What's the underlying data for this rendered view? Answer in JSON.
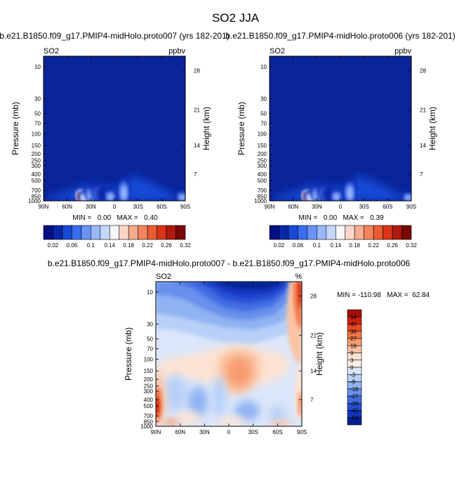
{
  "figure": {
    "title": "SO2 JJA"
  },
  "chart_data": [
    {
      "type": "heatmap",
      "title": "b.e21.B1850.f09_g17.PMIP4-midHolo.proto007 (yrs 182-201)",
      "left_label": "SO2",
      "units": "ppbv",
      "ylabel": "Pressure (mb)",
      "ylabel_right": "Height (km)",
      "x_ticks": [
        "90N",
        "60N",
        "30N",
        "0",
        "30S",
        "60S",
        "90S"
      ],
      "y_ticks": [
        "10",
        "30",
        "50",
        "70",
        "100",
        "150",
        "200",
        "250",
        "300",
        "400",
        "500",
        "700",
        "850",
        "1000"
      ],
      "y_ticks_right": [
        "28",
        "21",
        "14",
        "7"
      ],
      "min": "0.00",
      "max": "0.40",
      "stats": "MIN =   0.00   MAX =   0.40",
      "colorbar_labels": [
        "0.02",
        "0.06",
        "0.1",
        "0.14",
        "0.18",
        "0.22",
        "0.26",
        "0.32"
      ],
      "colors": [
        "#040f82",
        "#0a27a8",
        "#1848d6",
        "#3c6df0",
        "#6a93f7",
        "#9ab8fa",
        "#c5d8fb",
        "#f7f7f7",
        "#fbd5c8",
        "#f7ac90",
        "#f2845d",
        "#ea5a33",
        "#d9341a",
        "#b01a0e",
        "#7a0806"
      ],
      "background": "#0a2499",
      "plumes": [
        {
          "lat": 42,
          "pmin": 640,
          "level": 0.3
        },
        {
          "lat": 38,
          "pmin": 700,
          "level": 0.18
        },
        {
          "lat": 30,
          "pmin": 560,
          "level": 0.12
        },
        {
          "lat": 22,
          "pmin": 520,
          "level": 0.1
        },
        {
          "lat": 15,
          "pmin": 620,
          "level": 0.06
        },
        {
          "lat": 5,
          "pmin": 660,
          "level": 0.12
        },
        {
          "lat": -12,
          "pmin": 430,
          "level": 0.14
        },
        {
          "lat": -86,
          "pmin": 700,
          "level": 0.14
        }
      ]
    },
    {
      "type": "heatmap",
      "title": "b.e21.B1850.f09_g17.PMIP4-midHolo.proto006 (yrs 182-201)",
      "left_label": "SO2",
      "units": "ppbv",
      "ylabel": "Pressure (mb)",
      "ylabel_right": "Height (km)",
      "x_ticks": [
        "90N",
        "60N",
        "30N",
        "0",
        "30S",
        "60S",
        "90S"
      ],
      "y_ticks": [
        "10",
        "30",
        "50",
        "70",
        "100",
        "150",
        "200",
        "250",
        "300",
        "400",
        "500",
        "700",
        "850",
        "1000"
      ],
      "y_ticks_right": [
        "28",
        "21",
        "14",
        "7"
      ],
      "min": "0.00",
      "max": "0.39",
      "stats": "MIN =   0.00   MAX =   0.39",
      "colorbar_labels": [
        "0.02",
        "0.06",
        "0.1",
        "0.14",
        "0.18",
        "0.22",
        "0.26",
        "0.32"
      ],
      "colors": [
        "#040f82",
        "#0a27a8",
        "#1848d6",
        "#3c6df0",
        "#6a93f7",
        "#9ab8fa",
        "#c5d8fb",
        "#f7f7f7",
        "#fbd5c8",
        "#f7ac90",
        "#f2845d",
        "#ea5a33",
        "#d9341a",
        "#b01a0e",
        "#7a0806"
      ],
      "background": "#0a2499",
      "plumes": [
        {
          "lat": 42,
          "pmin": 650,
          "level": 0.28
        },
        {
          "lat": 38,
          "pmin": 700,
          "level": 0.18
        },
        {
          "lat": 30,
          "pmin": 560,
          "level": 0.12
        },
        {
          "lat": 22,
          "pmin": 520,
          "level": 0.1
        },
        {
          "lat": 15,
          "pmin": 620,
          "level": 0.06
        },
        {
          "lat": 5,
          "pmin": 660,
          "level": 0.12
        },
        {
          "lat": -12,
          "pmin": 450,
          "level": 0.12
        },
        {
          "lat": -86,
          "pmin": 720,
          "level": 0.12
        }
      ]
    },
    {
      "type": "heatmap",
      "title": "b.e21.B1850.f09_g17.PMIP4-midHolo.proto007 - b.e21.B1850.f09_g17.PMIP4-midHolo.proto006",
      "left_label": "SO2",
      "units": "%",
      "ylabel": "Pressure (mb)",
      "ylabel_right": "Height (km)",
      "x_ticks": [
        "90N",
        "60N",
        "30N",
        "0",
        "30S",
        "60S",
        "90S"
      ],
      "y_ticks": [
        "10",
        "30",
        "50",
        "70",
        "100",
        "150",
        "200",
        "250",
        "300",
        "400",
        "500",
        "700",
        "850",
        "1000"
      ],
      "y_ticks_right": [
        "28",
        "21",
        "14",
        "7"
      ],
      "min": "-110.98",
      "max": "62.84",
      "stats": "MIN = -110.98   MAX =  62.84",
      "colorbar_labels": [
        "54",
        "45",
        "36",
        "27",
        "18",
        "9",
        "3",
        "0",
        "-3",
        "-9",
        "-18",
        "-27",
        "-36",
        "-45",
        "-54"
      ],
      "colors": [
        "#a50f08",
        "#d02010",
        "#e84a26",
        "#f27444",
        "#f79c6f",
        "#fbc3a3",
        "#fde3d3",
        "#fdf1ea",
        "#d9e6fa",
        "#b8d0f7",
        "#8fb2f2",
        "#6890ec",
        "#436de3",
        "#254fd3",
        "#1235bf",
        "#06208f"
      ],
      "background": "#dbe6fa"
    }
  ]
}
